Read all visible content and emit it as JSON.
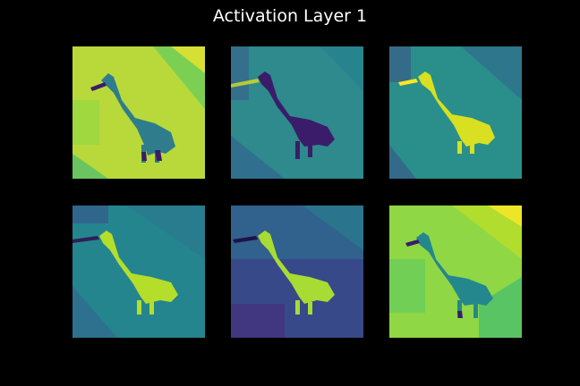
{
  "figure": {
    "title": "Activation Layer 1"
  },
  "panels": [
    {
      "index": 1,
      "colormap": "viridis",
      "background": "#b9d93a",
      "dog": "#2f7d8c"
    },
    {
      "index": 2,
      "colormap": "viridis",
      "background": "#2e8a8c",
      "dog": "#3b1c6b"
    },
    {
      "index": 3,
      "colormap": "viridis",
      "background": "#2a8f8a",
      "dog": "#d8e021"
    },
    {
      "index": 4,
      "colormap": "viridis",
      "background": "#25858e",
      "dog": "#b5de2b"
    },
    {
      "index": 5,
      "colormap": "viridis",
      "background": "#31618d",
      "dog": "#a8db34"
    },
    {
      "index": 6,
      "colormap": "viridis",
      "background": "#8fd744",
      "dog": "#24878e"
    }
  ]
}
